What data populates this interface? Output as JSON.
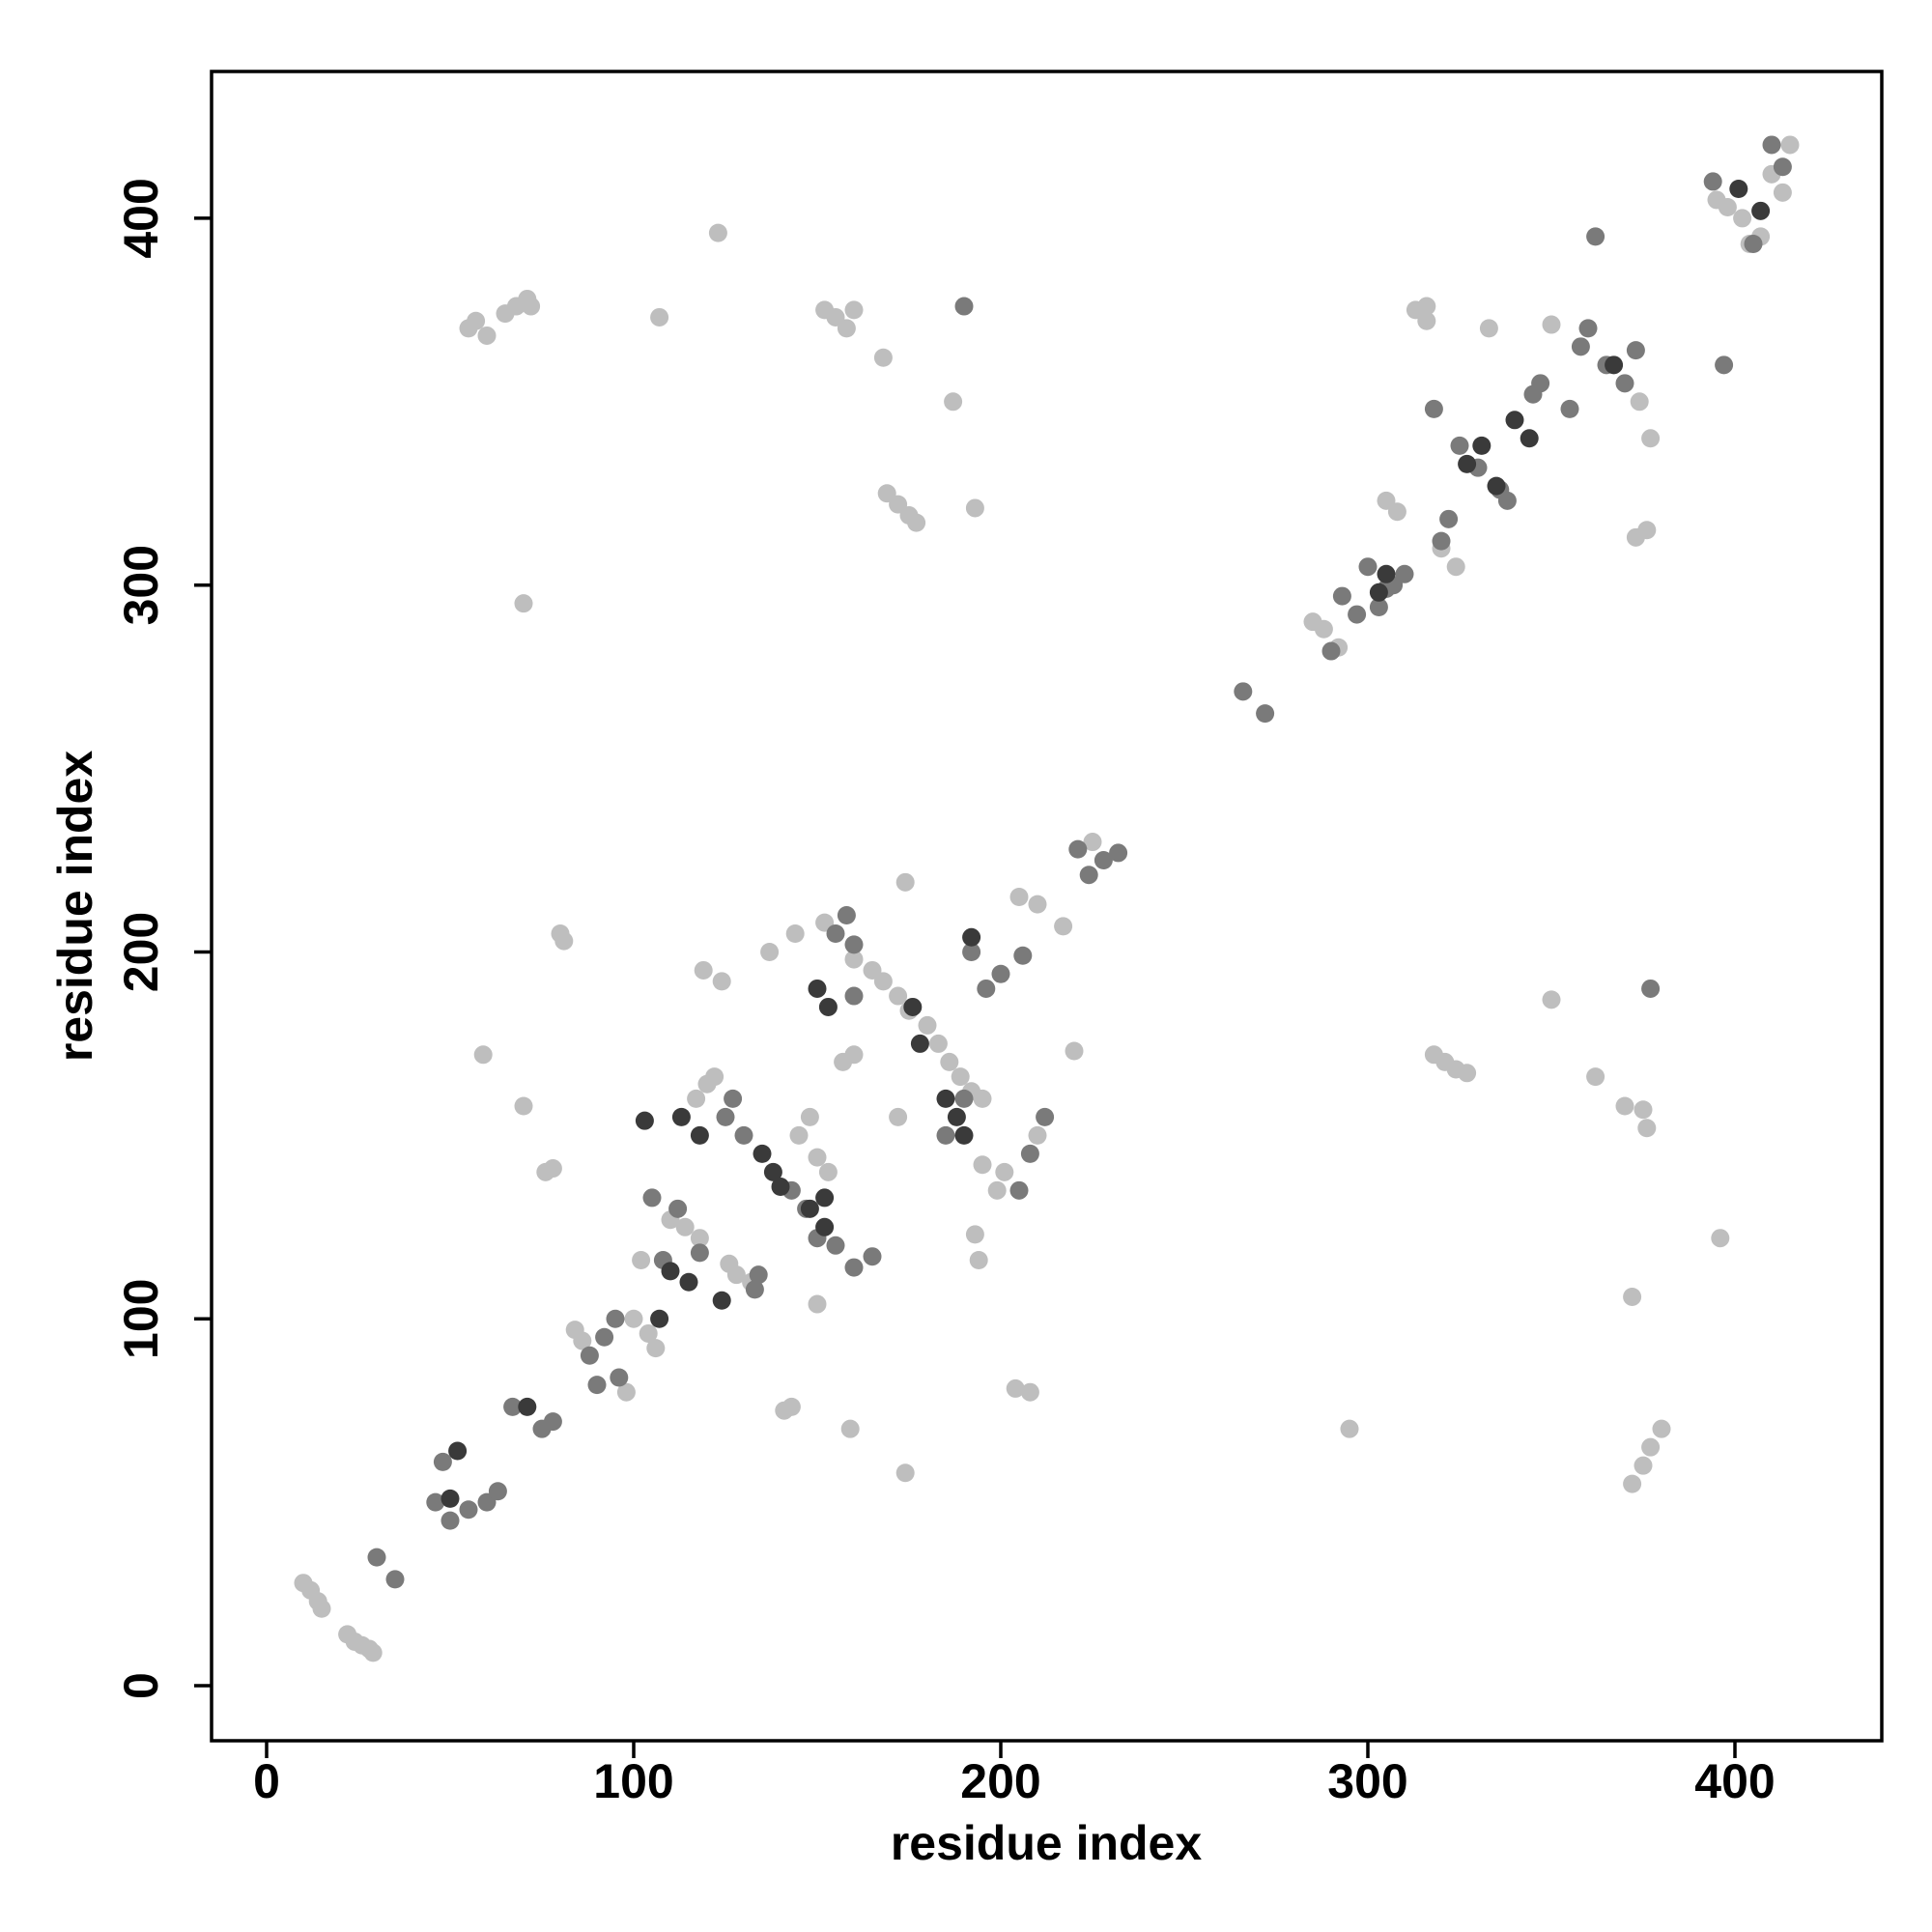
{
  "chart_data": {
    "type": "scatter",
    "xlabel": "residue index",
    "ylabel": "residue index",
    "xlim": [
      -15,
      440
    ],
    "ylim": [
      -15,
      440
    ],
    "xticks": [
      0,
      100,
      200,
      300,
      400
    ],
    "yticks": [
      0,
      100,
      200,
      300,
      400
    ],
    "series": [
      {
        "color": "#bebebe",
        "x": [
          10,
          12,
          14,
          15,
          22,
          24,
          26,
          28,
          29,
          55,
          57,
          60,
          65,
          68,
          71,
          72,
          107,
          123,
          152,
          155,
          158,
          160,
          168,
          70,
          169,
          172,
          175,
          177,
          193,
          187,
          313,
          316,
          316,
          333,
          350,
          395,
          398,
          402,
          404,
          407,
          410,
          413,
          415,
          374,
          377,
          373,
          376,
          324,
          320,
          305,
          308,
          292,
          285,
          288,
          80,
          81,
          59,
          70,
          76,
          78,
          119,
          124,
          117,
          120,
          122,
          141,
          143,
          159,
          174,
          204,
          208,
          295,
          372,
          396,
          372,
          375,
          377,
          380,
          350,
          362,
          370,
          375,
          376,
          318,
          321,
          324,
          327,
          174,
          205,
          210,
          217,
          220,
          225,
          160,
          165,
          168,
          172,
          175,
          180,
          183,
          186,
          189,
          192,
          195,
          137,
          144,
          152,
          128,
          132,
          126,
          110,
          114,
          118,
          100,
          104,
          106,
          98,
          102,
          84,
          86,
          195,
          199,
          201,
          210,
          193,
          194,
          145,
          148,
          150,
          153,
          150,
          157,
          160,
          172
        ],
        "y": [
          28,
          26,
          23,
          21,
          14,
          12,
          11,
          10,
          9,
          370,
          372,
          368,
          374,
          376,
          378,
          376,
          373,
          396,
          375,
          373,
          370,
          375,
          362,
          295,
          325,
          322,
          319,
          317,
          321,
          350,
          375,
          376,
          372,
          370,
          371,
          405,
          403,
          400,
          393,
          395,
          412,
          407,
          420,
          350,
          340,
          313,
          315,
          305,
          310,
          323,
          320,
          283,
          290,
          288,
          205,
          203,
          172,
          158,
          140,
          141,
          195,
          192,
          160,
          164,
          166,
          75,
          76,
          70,
          58,
          81,
          80,
          70,
          106,
          122,
          55,
          60,
          65,
          70,
          187,
          166,
          158,
          157,
          152,
          172,
          170,
          168,
          167,
          219,
          215,
          213,
          207,
          173,
          230,
          198,
          195,
          192,
          188,
          184,
          180,
          175,
          170,
          166,
          162,
          160,
          200,
          205,
          208,
          112,
          110,
          115,
          127,
          125,
          122,
          100,
          96,
          92,
          80,
          116,
          97,
          94,
          142,
          135,
          140,
          150,
          123,
          116,
          150,
          155,
          144,
          140,
          104,
          170,
          172,
          155
        ]
      },
      {
        "color": "#7a7a7a",
        "x": [
          30,
          35,
          48,
          46,
          50,
          55,
          60,
          63,
          67,
          75,
          78,
          88,
          92,
          95,
          90,
          96,
          105,
          108,
          112,
          118,
          125,
          130,
          127,
          133,
          134,
          143,
          147,
          150,
          155,
          160,
          165,
          160,
          155,
          158,
          160,
          190,
          192,
          196,
          200,
          206,
          185,
          190,
          205,
          208,
          212,
          221,
          224,
          228,
          232,
          266,
          272,
          290,
          293,
          297,
          300,
          303,
          305,
          307,
          310,
          318,
          320,
          322,
          325,
          330,
          336,
          338,
          345,
          347,
          355,
          358,
          360,
          362,
          365,
          370,
          373,
          394,
          397,
          405,
          410,
          413,
          377
        ],
        "y": [
          35,
          29,
          61,
          50,
          45,
          48,
          50,
          53,
          76,
          70,
          72,
          90,
          95,
          100,
          82,
          84,
          133,
          116,
          130,
          118,
          155,
          150,
          160,
          108,
          112,
          135,
          130,
          122,
          120,
          114,
          117,
          188,
          205,
          210,
          202,
          376,
          200,
          190,
          194,
          199,
          150,
          160,
          135,
          145,
          155,
          228,
          221,
          225,
          227,
          271,
          265,
          282,
          297,
          292,
          305,
          294,
          299,
          300,
          303,
          348,
          312,
          318,
          338,
          332,
          326,
          323,
          352,
          355,
          348,
          365,
          370,
          395,
          360,
          355,
          364,
          410,
          360,
          393,
          420,
          414,
          190
        ]
      },
      {
        "color": "#3a3a3a",
        "x": [
          52,
          50,
          71,
          103,
          110,
          107,
          115,
          113,
          118,
          124,
          135,
          138,
          140,
          148,
          152,
          152,
          150,
          153,
          176,
          178,
          185,
          188,
          190,
          192,
          305,
          303,
          327,
          331,
          335,
          340,
          344,
          367,
          401,
          407
        ],
        "y": [
          64,
          51,
          76,
          154,
          113,
          100,
          110,
          155,
          150,
          105,
          145,
          140,
          136,
          130,
          125,
          133,
          190,
          185,
          185,
          175,
          160,
          155,
          150,
          204,
          303,
          298,
          333,
          338,
          327,
          345,
          340,
          360,
          408,
          402
        ]
      }
    ]
  }
}
